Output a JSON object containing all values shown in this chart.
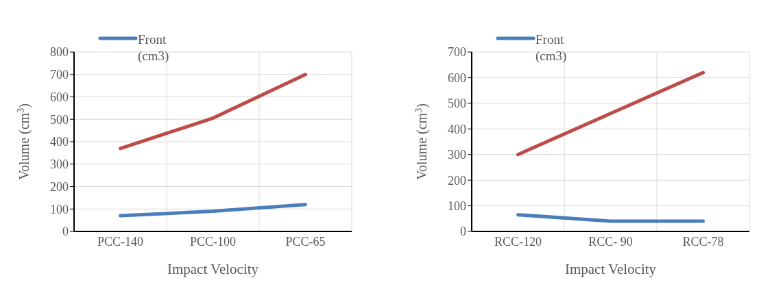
{
  "chart_data": [
    {
      "type": "line",
      "categories": [
        "PCC-140",
        "PCC-100",
        "PCC-65"
      ],
      "xlabel": "Impact Velocity",
      "ylabel": "Volume (cm$^{3}$)",
      "ylim": [
        0,
        800
      ],
      "yticks": [
        0,
        100,
        200,
        300,
        400,
        500,
        600,
        700,
        800
      ],
      "grid": true,
      "legend": "top left",
      "line_style": "solid",
      "marker": "none",
      "series": [
        {
          "name": "Front (cm3)",
          "color": "#4a7ebb",
          "values": [
            70,
            90,
            120
          ]
        },
        {
          "color": "#be4b48",
          "values": [
            370,
            505,
            700
          ]
        }
      ]
    },
    {
      "type": "line",
      "categories": [
        "RCC-120",
        "RCC- 90",
        "RCC-78"
      ],
      "xlabel": "Impact Velocity",
      "ylabel": "Volume (cm$^{3}$)",
      "ylim": [
        0,
        700
      ],
      "yticks": [
        0,
        100,
        200,
        300,
        400,
        500,
        600,
        700
      ],
      "grid": true,
      "legend": "top left",
      "line_style": "solid",
      "marker": "none",
      "series": [
        {
          "name": "Front (cm3)",
          "color": "#4a7ebb",
          "values": [
            65,
            40,
            40
          ]
        },
        {
          "color": "#be4b48",
          "values": [
            300,
            460,
            620
          ]
        }
      ]
    }
  ]
}
